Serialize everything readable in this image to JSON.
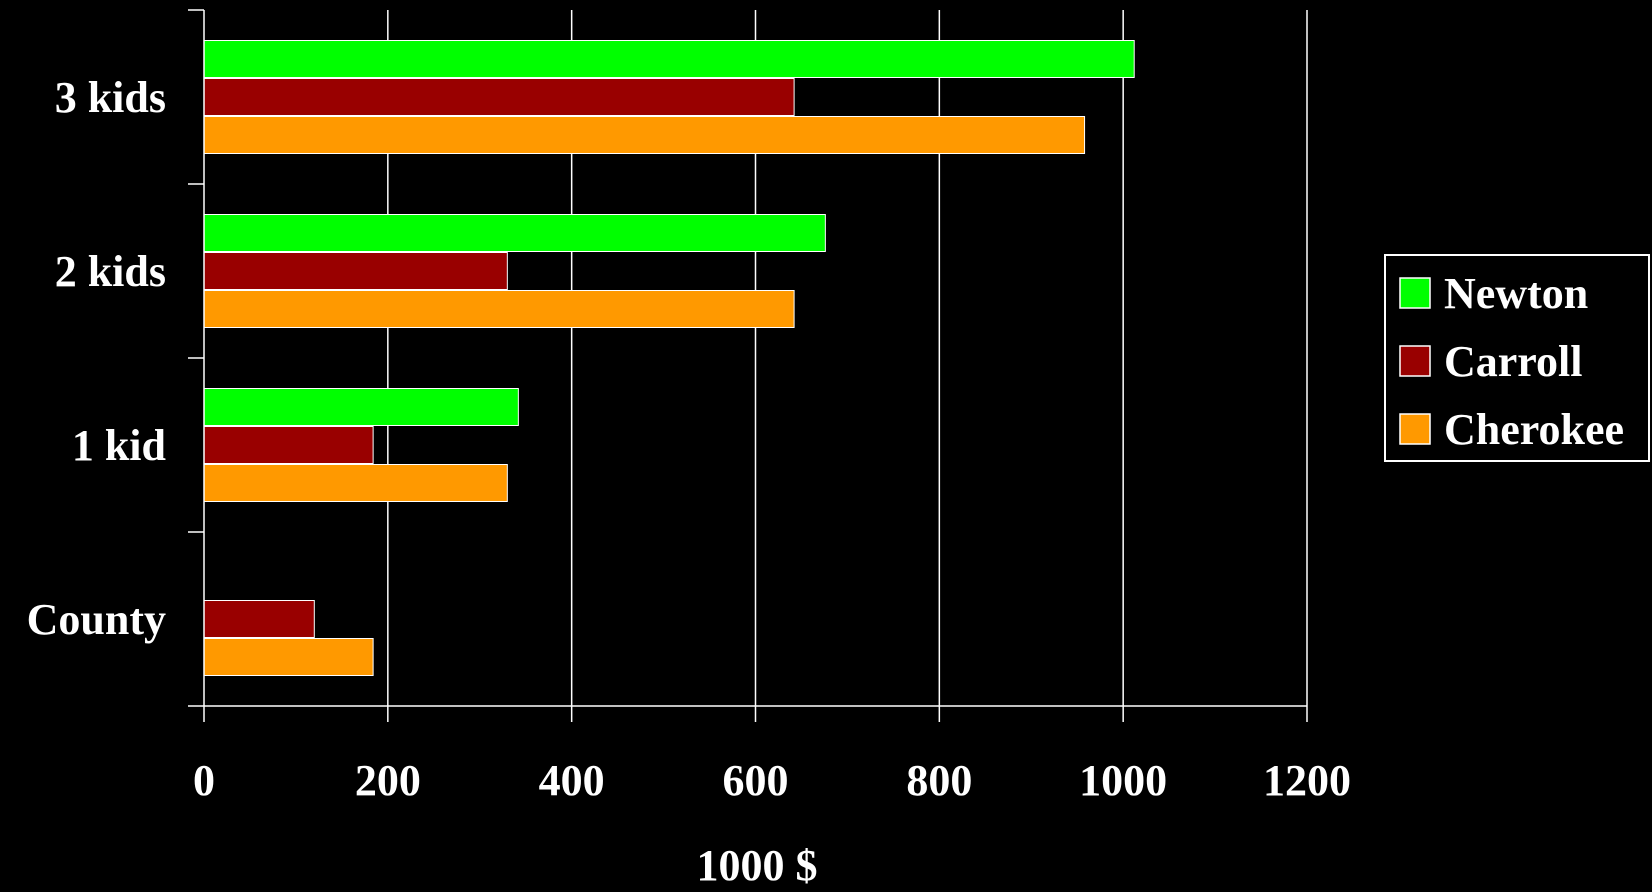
{
  "colors": {
    "background": "#000000",
    "foreground": "#ffffff"
  },
  "chart_data": {
    "type": "bar",
    "orientation": "horizontal",
    "categories": [
      "3 kids",
      "2 kids",
      "1 kid",
      "County"
    ],
    "series": [
      {
        "name": "Newton",
        "color": "#00ff00",
        "values": [
          1012,
          676,
          342,
          null
        ]
      },
      {
        "name": "Carroll",
        "color": "#990000",
        "values": [
          642,
          330,
          184,
          120
        ]
      },
      {
        "name": "Cherokee",
        "color": "#ff9900",
        "values": [
          958,
          642,
          330,
          184
        ]
      }
    ],
    "xlabel": "1000 $",
    "ylabel": "",
    "xlim": [
      0,
      1200
    ],
    "xticks": [
      "0",
      "200",
      "400",
      "600",
      "800",
      "1000",
      "1200"
    ],
    "grid": true,
    "legend_position": "right"
  }
}
